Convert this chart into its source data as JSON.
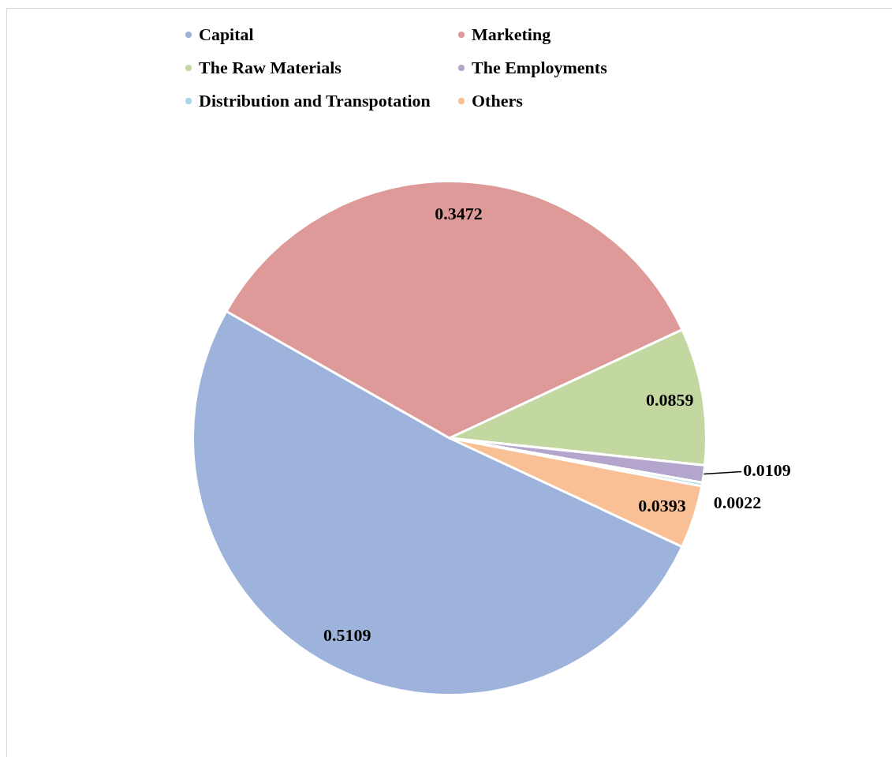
{
  "chart_data": {
    "type": "pie",
    "categories": [
      "Capital",
      "Marketing",
      "The Raw Materials",
      "The Employments",
      "Distribution and Transpotation",
      "Others"
    ],
    "values": [
      0.5109,
      0.3472,
      0.0859,
      0.0109,
      0.0022,
      0.0393
    ],
    "colors": [
      "#9db3dc",
      "#dd9a98",
      "#c3d8a0",
      "#b3a5cc",
      "#a6d6e6",
      "#f9bf95"
    ],
    "data_labels": true,
    "legend": "top"
  }
}
